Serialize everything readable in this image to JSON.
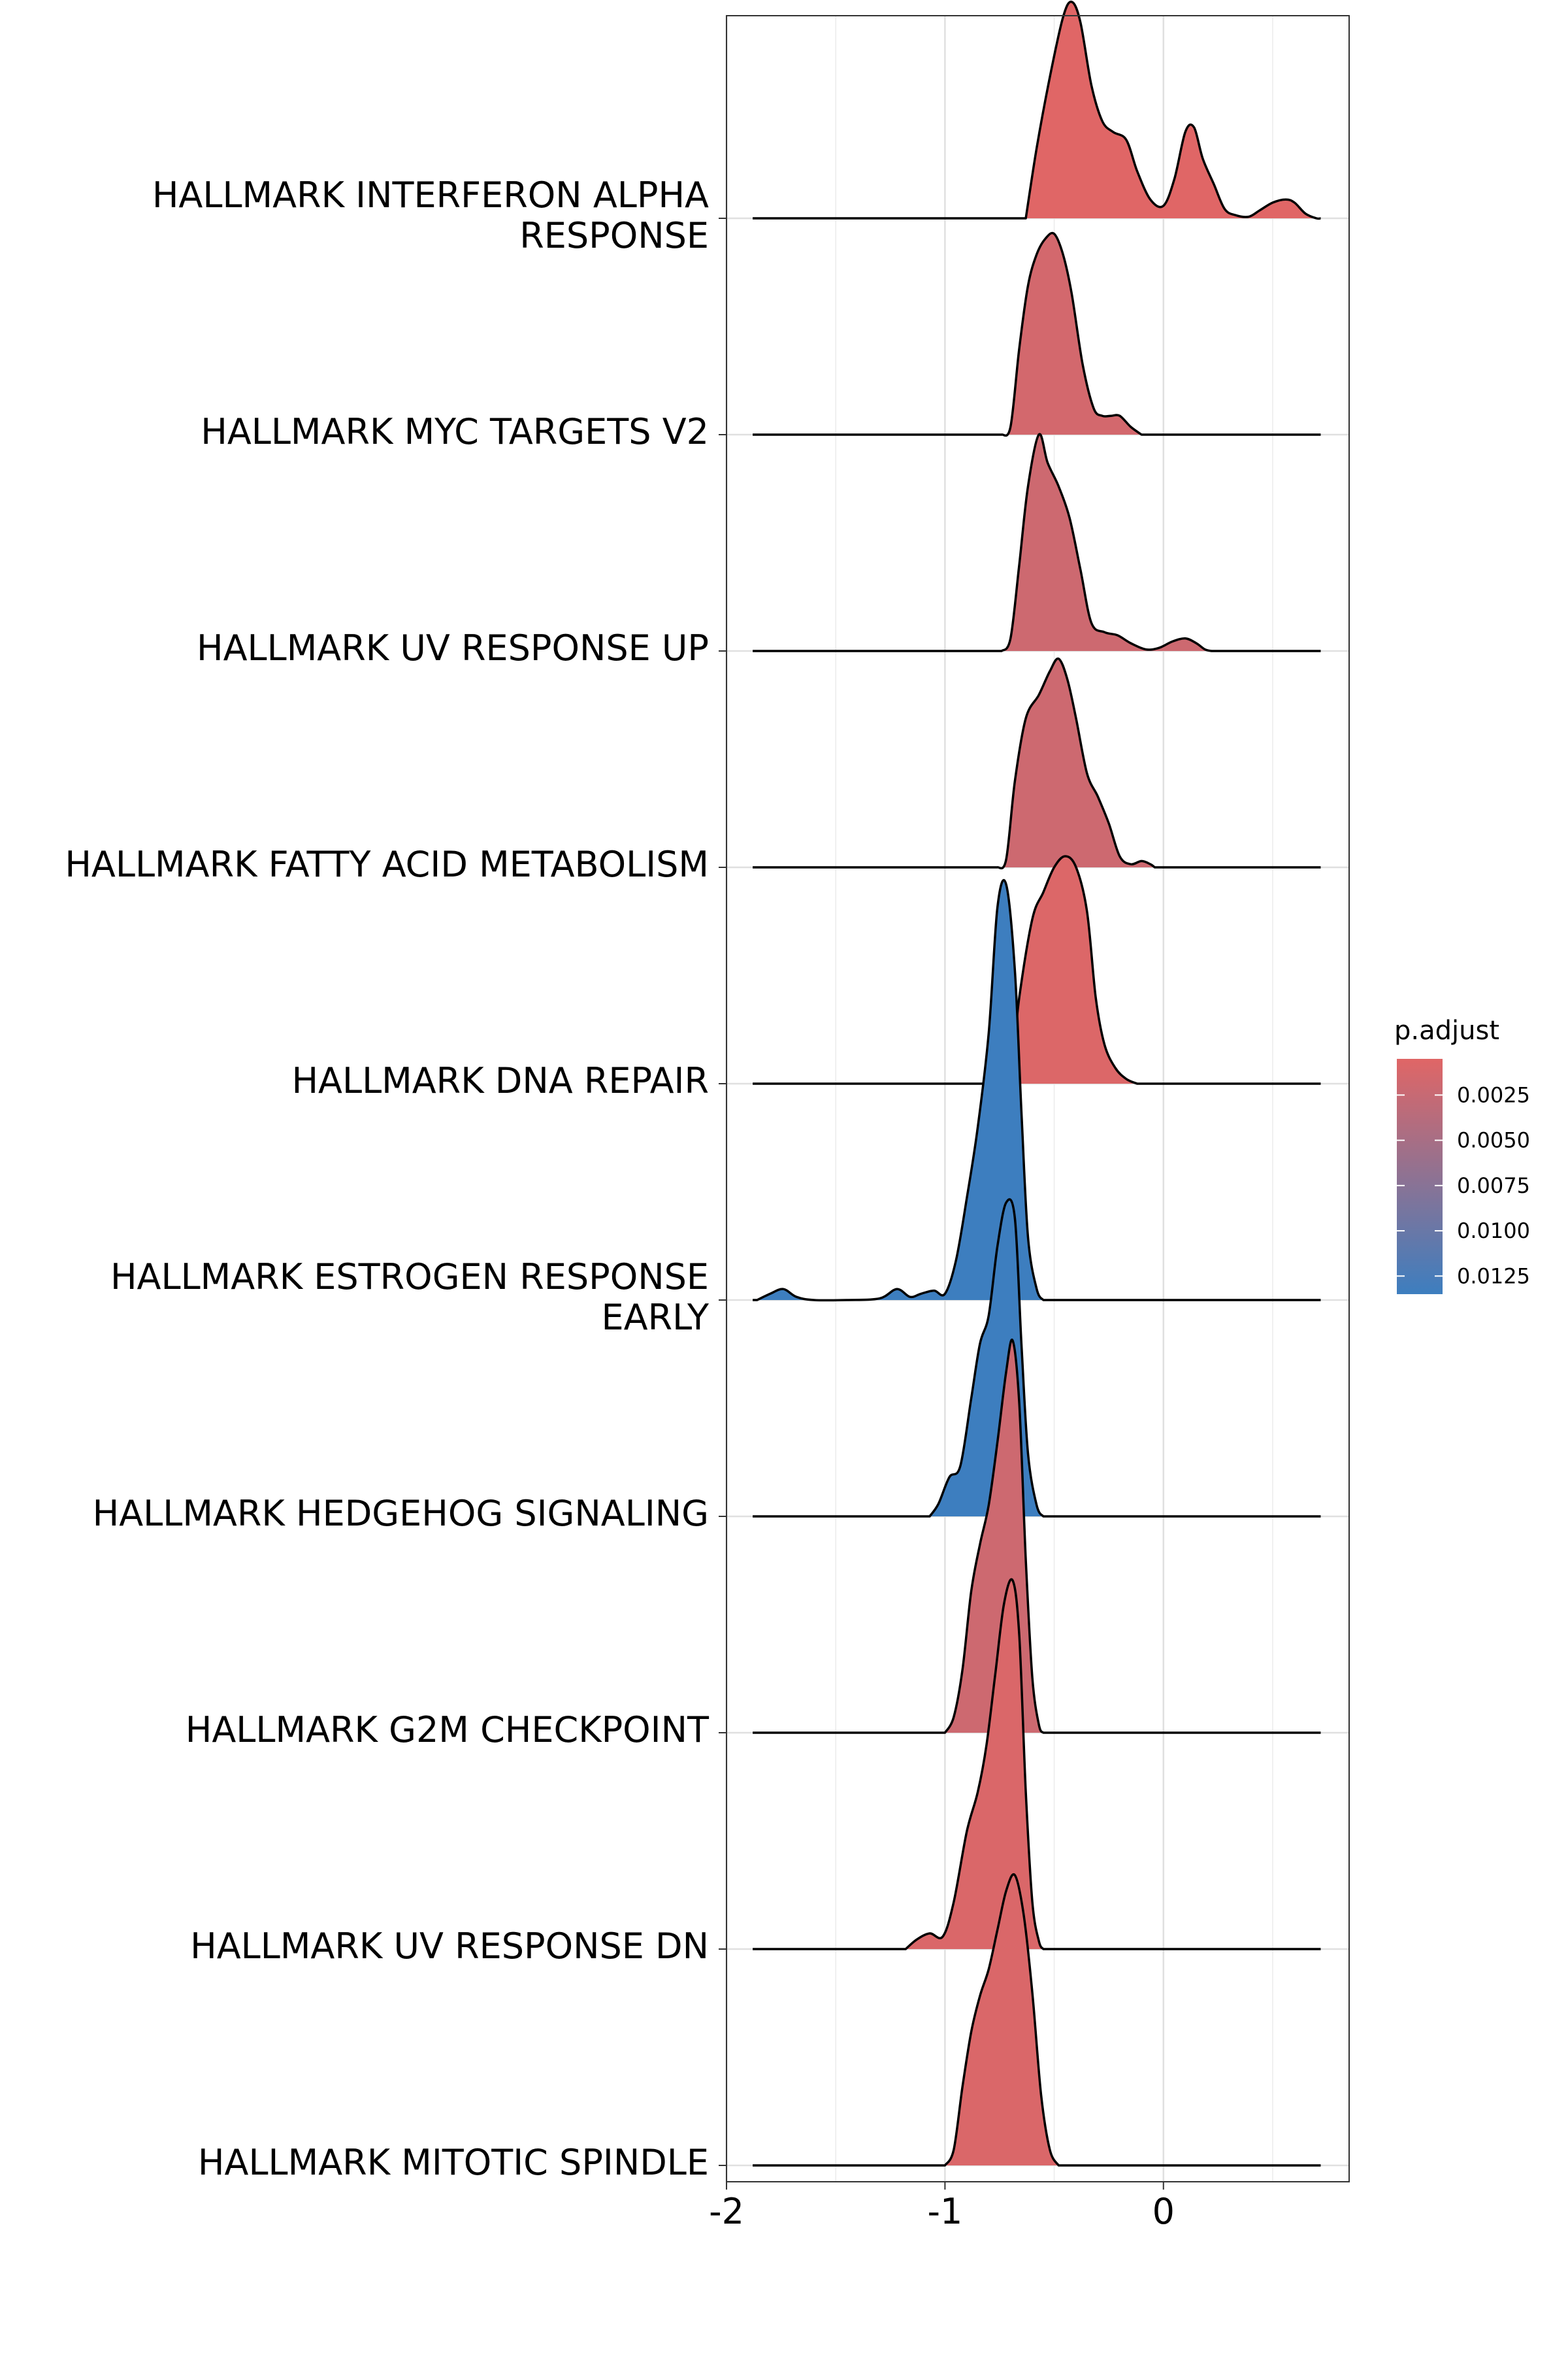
{
  "chart_data": {
    "type": "ridgeline",
    "xlabel": "",
    "ylabel": "",
    "xlim": [
      -2,
      0.85
    ],
    "x_ticks": [
      -2,
      -1,
      0
    ],
    "x_tick_labels": [
      "-2",
      "-1",
      "0"
    ],
    "grid": true,
    "legend": {
      "title": "p.adjust",
      "position": "right",
      "type": "colorbar",
      "low_value": 0.0005,
      "high_value": 0.0135,
      "low_color": "#e06666",
      "high_color": "#3d7ebf",
      "ticks": [
        0.0025,
        0.005,
        0.0075,
        0.01,
        0.0125
      ],
      "tick_labels": [
        "0.0025",
        "0.0050",
        "0.0075",
        "0.0100",
        "0.0125"
      ]
    },
    "series": [
      {
        "name": "HALLMARK INTERFERON ALPHA\nRESPONSE",
        "p_adjust": 0.0005,
        "x_range": [
          -1.88,
          0.72
        ],
        "fill_range": [
          -0.63,
          0.72
        ],
        "points": [
          [
            -0.63,
            0.0
          ],
          [
            -0.58,
            0.45
          ],
          [
            -0.52,
            0.9
          ],
          [
            -0.46,
            1.28
          ],
          [
            -0.42,
            1.38
          ],
          [
            -0.38,
            1.25
          ],
          [
            -0.33,
            0.85
          ],
          [
            -0.28,
            0.62
          ],
          [
            -0.23,
            0.55
          ],
          [
            -0.17,
            0.5
          ],
          [
            -0.12,
            0.3
          ],
          [
            -0.06,
            0.12
          ],
          [
            0.0,
            0.08
          ],
          [
            0.05,
            0.25
          ],
          [
            0.1,
            0.55
          ],
          [
            0.14,
            0.58
          ],
          [
            0.18,
            0.38
          ],
          [
            0.23,
            0.22
          ],
          [
            0.28,
            0.06
          ],
          [
            0.33,
            0.02
          ],
          [
            0.39,
            0.01
          ],
          [
            0.44,
            0.05
          ],
          [
            0.5,
            0.1
          ],
          [
            0.56,
            0.12
          ],
          [
            0.6,
            0.1
          ],
          [
            0.65,
            0.03
          ],
          [
            0.7,
            0.0
          ],
          [
            0.72,
            0.0
          ]
        ]
      },
      {
        "name": "HALLMARK MYC TARGETS V2",
        "p_adjust": 0.0015,
        "x_range": [
          -1.88,
          0.72
        ],
        "fill_range": [
          -0.74,
          -0.1
        ],
        "points": [
          [
            -0.74,
            0.0
          ],
          [
            -0.7,
            0.05
          ],
          [
            -0.66,
            0.55
          ],
          [
            -0.62,
            0.95
          ],
          [
            -0.58,
            1.15
          ],
          [
            -0.54,
            1.25
          ],
          [
            -0.5,
            1.28
          ],
          [
            -0.46,
            1.15
          ],
          [
            -0.42,
            0.9
          ],
          [
            -0.37,
            0.45
          ],
          [
            -0.32,
            0.17
          ],
          [
            -0.28,
            0.12
          ],
          [
            -0.24,
            0.12
          ],
          [
            -0.2,
            0.12
          ],
          [
            -0.15,
            0.05
          ],
          [
            -0.1,
            0.0
          ]
        ]
      },
      {
        "name": "HALLMARK UV RESPONSE UP",
        "p_adjust": 0.002,
        "x_range": [
          -1.88,
          0.72
        ],
        "fill_range": [
          -0.74,
          0.22
        ],
        "points": [
          [
            -0.74,
            0.0
          ],
          [
            -0.7,
            0.08
          ],
          [
            -0.66,
            0.55
          ],
          [
            -0.62,
            1.05
          ],
          [
            -0.57,
            1.38
          ],
          [
            -0.53,
            1.2
          ],
          [
            -0.48,
            1.05
          ],
          [
            -0.43,
            0.85
          ],
          [
            -0.38,
            0.52
          ],
          [
            -0.33,
            0.18
          ],
          [
            -0.27,
            0.12
          ],
          [
            -0.21,
            0.1
          ],
          [
            -0.15,
            0.05
          ],
          [
            -0.08,
            0.01
          ],
          [
            -0.02,
            0.02
          ],
          [
            0.04,
            0.06
          ],
          [
            0.1,
            0.08
          ],
          [
            0.15,
            0.05
          ],
          [
            0.19,
            0.01
          ],
          [
            0.22,
            0.0
          ]
        ]
      },
      {
        "name": "HALLMARK FATTY ACID METABOLISM",
        "p_adjust": 0.002,
        "x_range": [
          -1.88,
          0.72
        ],
        "fill_range": [
          -0.76,
          -0.04
        ],
        "points": [
          [
            -0.76,
            0.0
          ],
          [
            -0.72,
            0.05
          ],
          [
            -0.68,
            0.55
          ],
          [
            -0.63,
            0.95
          ],
          [
            -0.57,
            1.1
          ],
          [
            -0.52,
            1.25
          ],
          [
            -0.48,
            1.33
          ],
          [
            -0.44,
            1.2
          ],
          [
            -0.4,
            0.95
          ],
          [
            -0.35,
            0.6
          ],
          [
            -0.3,
            0.45
          ],
          [
            -0.25,
            0.28
          ],
          [
            -0.2,
            0.07
          ],
          [
            -0.15,
            0.02
          ],
          [
            -0.1,
            0.04
          ],
          [
            -0.06,
            0.02
          ],
          [
            -0.04,
            0.0
          ]
        ]
      },
      {
        "name": "HALLMARK DNA REPAIR",
        "p_adjust": 0.0008,
        "x_range": [
          -1.88,
          0.72
        ],
        "fill_range": [
          -0.75,
          -0.12
        ],
        "points": [
          [
            -0.75,
            0.0
          ],
          [
            -0.7,
            0.05
          ],
          [
            -0.66,
            0.55
          ],
          [
            -0.6,
            1.05
          ],
          [
            -0.55,
            1.22
          ],
          [
            -0.5,
            1.38
          ],
          [
            -0.45,
            1.45
          ],
          [
            -0.4,
            1.38
          ],
          [
            -0.35,
            1.1
          ],
          [
            -0.31,
            0.55
          ],
          [
            -0.27,
            0.25
          ],
          [
            -0.22,
            0.1
          ],
          [
            -0.17,
            0.03
          ],
          [
            -0.12,
            0.0
          ]
        ]
      },
      {
        "name": "HALLMARK ESTROGEN RESPONSE\nEARLY",
        "p_adjust": 0.0135,
        "x_range": [
          -1.88,
          0.72
        ],
        "fill_range": [
          -1.86,
          -0.55
        ],
        "points": [
          [
            -1.86,
            0.0
          ],
          [
            -1.8,
            0.04
          ],
          [
            -1.74,
            0.07
          ],
          [
            -1.68,
            0.02
          ],
          [
            -1.6,
            0.0
          ],
          [
            -1.45,
            0.0
          ],
          [
            -1.3,
            0.01
          ],
          [
            -1.22,
            0.07
          ],
          [
            -1.16,
            0.02
          ],
          [
            -1.11,
            0.04
          ],
          [
            -1.05,
            0.06
          ],
          [
            -1.0,
            0.04
          ],
          [
            -0.95,
            0.25
          ],
          [
            -0.9,
            0.65
          ],
          [
            -0.85,
            1.1
          ],
          [
            -0.8,
            1.7
          ],
          [
            -0.76,
            2.5
          ],
          [
            -0.72,
            2.65
          ],
          [
            -0.68,
            2.1
          ],
          [
            -0.65,
            1.2
          ],
          [
            -0.62,
            0.4
          ],
          [
            -0.58,
            0.07
          ],
          [
            -0.55,
            0.0
          ]
        ]
      },
      {
        "name": "HALLMARK HEDGEHOG SIGNALING",
        "p_adjust": 0.0135,
        "x_range": [
          -1.88,
          0.72
        ],
        "fill_range": [
          -1.07,
          -0.55
        ],
        "points": [
          [
            -1.07,
            0.0
          ],
          [
            -1.03,
            0.08
          ],
          [
            -0.98,
            0.25
          ],
          [
            -0.93,
            0.32
          ],
          [
            -0.88,
            0.75
          ],
          [
            -0.84,
            1.1
          ],
          [
            -0.8,
            1.28
          ],
          [
            -0.76,
            1.72
          ],
          [
            -0.72,
            2.0
          ],
          [
            -0.68,
            1.9
          ],
          [
            -0.65,
            1.1
          ],
          [
            -0.62,
            0.4
          ],
          [
            -0.58,
            0.07
          ],
          [
            -0.55,
            0.0
          ]
        ]
      },
      {
        "name": "HALLMARK G2M CHECKPOINT",
        "p_adjust": 0.002,
        "x_range": [
          -1.88,
          0.72
        ],
        "fill_range": [
          -1.0,
          -0.55
        ],
        "points": [
          [
            -1.0,
            0.0
          ],
          [
            -0.96,
            0.1
          ],
          [
            -0.92,
            0.4
          ],
          [
            -0.88,
            0.9
          ],
          [
            -0.84,
            1.2
          ],
          [
            -0.8,
            1.45
          ],
          [
            -0.76,
            1.85
          ],
          [
            -0.72,
            2.3
          ],
          [
            -0.69,
            2.5
          ],
          [
            -0.66,
            2.1
          ],
          [
            -0.63,
            1.1
          ],
          [
            -0.6,
            0.35
          ],
          [
            -0.57,
            0.05
          ],
          [
            -0.55,
            0.0
          ]
        ]
      },
      {
        "name": "HALLMARK UV RESPONSE DN",
        "p_adjust": 0.001,
        "x_range": [
          -1.88,
          0.72
        ],
        "fill_range": [
          -1.18,
          -0.55
        ],
        "points": [
          [
            -1.18,
            0.0
          ],
          [
            -1.13,
            0.06
          ],
          [
            -1.07,
            0.1
          ],
          [
            -1.01,
            0.08
          ],
          [
            -0.96,
            0.3
          ],
          [
            -0.9,
            0.75
          ],
          [
            -0.85,
            1.0
          ],
          [
            -0.81,
            1.3
          ],
          [
            -0.77,
            1.75
          ],
          [
            -0.73,
            2.2
          ],
          [
            -0.69,
            2.35
          ],
          [
            -0.66,
            2.0
          ],
          [
            -0.63,
            1.0
          ],
          [
            -0.6,
            0.3
          ],
          [
            -0.57,
            0.05
          ],
          [
            -0.55,
            0.0
          ]
        ]
      },
      {
        "name": "HALLMARK MITOTIC SPINDLE",
        "p_adjust": 0.001,
        "x_range": [
          -1.88,
          0.72
        ],
        "fill_range": [
          -1.0,
          -0.48
        ],
        "points": [
          [
            -1.0,
            0.0
          ],
          [
            -0.96,
            0.1
          ],
          [
            -0.92,
            0.5
          ],
          [
            -0.88,
            0.85
          ],
          [
            -0.84,
            1.08
          ],
          [
            -0.8,
            1.25
          ],
          [
            -0.76,
            1.5
          ],
          [
            -0.72,
            1.75
          ],
          [
            -0.68,
            1.85
          ],
          [
            -0.64,
            1.6
          ],
          [
            -0.6,
            1.1
          ],
          [
            -0.56,
            0.45
          ],
          [
            -0.52,
            0.1
          ],
          [
            -0.48,
            0.0
          ]
        ]
      }
    ]
  }
}
